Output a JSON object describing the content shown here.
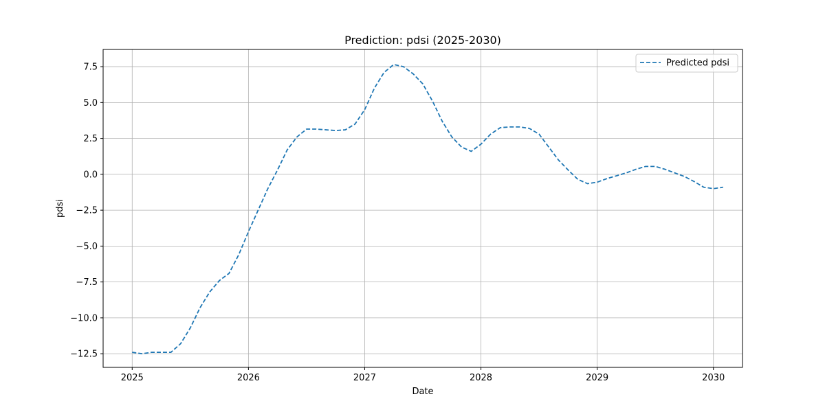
{
  "chart_data": {
    "type": "line",
    "title": "Prediction: pdsi (2025-2030)",
    "xlabel": "Date",
    "ylabel": "pdsi",
    "x_date_start": 2025.0,
    "x_step": 0.0833333,
    "xlim": [
      2024.75,
      2030.25
    ],
    "ylim": [
      -13.45,
      8.7
    ],
    "xticks": [
      2025,
      2026,
      2027,
      2028,
      2029,
      2030
    ],
    "xtick_labels": [
      "2025",
      "2026",
      "2027",
      "2028",
      "2029",
      "2030"
    ],
    "yticks": [
      -12.5,
      -10.0,
      -7.5,
      -5.0,
      -2.5,
      0.0,
      2.5,
      5.0,
      7.5
    ],
    "ytick_labels": [
      "−12.5",
      "−10.0",
      "−7.5",
      "−5.0",
      "−2.5",
      "0.0",
      "2.5",
      "5.0",
      "7.5"
    ],
    "grid": true,
    "legend_position": "top-right",
    "series": [
      {
        "name": "Predicted pdsi",
        "color": "#1f77b4",
        "line_style": "dashed",
        "values": [
          -12.4,
          -12.5,
          -12.4,
          -12.4,
          -12.4,
          -11.8,
          -10.7,
          -9.3,
          -8.2,
          -7.4,
          -6.9,
          -5.6,
          -4.0,
          -2.5,
          -1.0,
          0.3,
          1.7,
          2.6,
          3.15,
          3.15,
          3.1,
          3.05,
          3.1,
          3.5,
          4.5,
          6.0,
          7.1,
          7.65,
          7.5,
          7.0,
          6.3,
          5.1,
          3.7,
          2.6,
          1.9,
          1.6,
          2.1,
          2.8,
          3.25,
          3.3,
          3.3,
          3.2,
          2.8,
          1.9,
          1.0,
          0.3,
          -0.35,
          -0.65,
          -0.55,
          -0.3,
          -0.1,
          0.1,
          0.35,
          0.55,
          0.55,
          0.35,
          0.1,
          -0.15,
          -0.5,
          -0.9,
          -1.0,
          -0.9
        ]
      }
    ]
  }
}
